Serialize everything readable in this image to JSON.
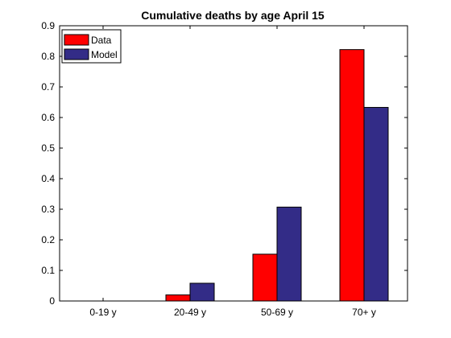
{
  "chart_data": {
    "type": "bar",
    "title": "Cumulative deaths by age April 15",
    "xlabel": "",
    "ylabel": "",
    "categories": [
      "0-19 y",
      "20-49 y",
      "50-69 y",
      "70+ y"
    ],
    "series": [
      {
        "name": "Data",
        "color": "#ff0000",
        "values": [
          0.0,
          0.02,
          0.153,
          0.822
        ]
      },
      {
        "name": "Model",
        "color": "#332c87",
        "values": [
          0.0,
          0.058,
          0.307,
          0.633
        ]
      }
    ],
    "ylim": [
      0,
      0.9
    ],
    "yticks": [
      "0",
      "0.1",
      "0.2",
      "0.3",
      "0.4",
      "0.5",
      "0.6",
      "0.7",
      "0.8",
      "0.9"
    ],
    "ytick_values": [
      0,
      0.1,
      0.2,
      0.3,
      0.4,
      0.5,
      0.6,
      0.7,
      0.8,
      0.9
    ],
    "legend_position": "top-left",
    "grid": false
  }
}
